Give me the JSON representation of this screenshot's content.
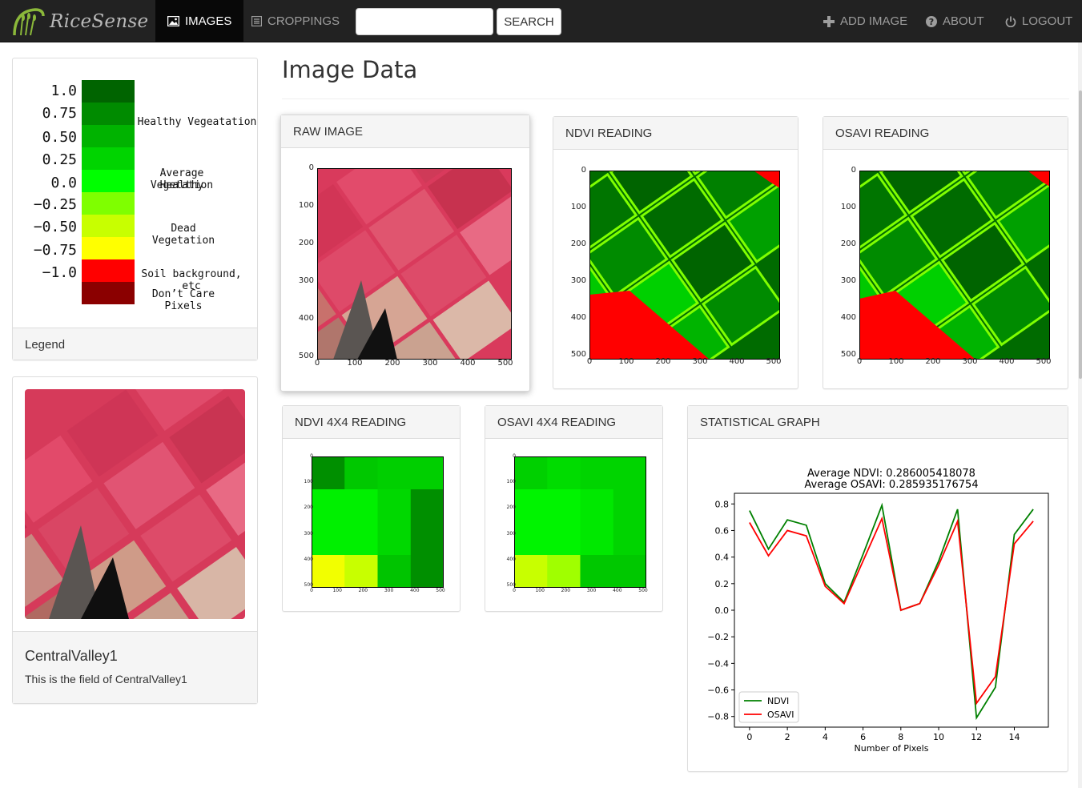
{
  "brand": {
    "name": "RiceSense"
  },
  "nav": {
    "images": "IMAGES",
    "croppings": "CROPPINGS",
    "search_value": "",
    "search_button": "SEARCH",
    "add_image": "ADD IMAGE",
    "about": "ABOUT",
    "logout": "LOGOUT"
  },
  "legend": {
    "values": [
      "1.0",
      "0.75",
      "0.50",
      "0.25",
      "0.0",
      "−0.25",
      "−0.50",
      "−0.75",
      "−1.0"
    ],
    "colors": [
      "#006400",
      "#008b00",
      "#00b300",
      "#00d400",
      "#00ff00",
      "#7fff00",
      "#c8ff00",
      "#ffff00",
      "#ff0000",
      "#8b0000"
    ],
    "desc_healthy": "Healthy Vegeatation",
    "desc_average_1": "Average Healthy",
    "desc_average_2": "Vegetation",
    "desc_dead": "Dead Vegetation",
    "desc_soil": "Soil background, etc",
    "desc_dontcare": "Don’t Care Pixels",
    "footer": "Legend"
  },
  "field_card": {
    "name": "CentralValley1",
    "description": "This is the field of CentralValley1"
  },
  "page_title": "Image Data",
  "panels": {
    "raw": "RAW IMAGE",
    "ndvi": "NDVI READING",
    "osavi": "OSAVI READING",
    "ndvi4": "NDVI 4X4 READING",
    "osavi4": "OSAVI 4X4 READING",
    "stat": "STATISTICAL GRAPH"
  },
  "image_axes": {
    "x_ticks": [
      "0",
      "100",
      "200",
      "300",
      "400",
      "500"
    ],
    "y_ticks": [
      "0",
      "100",
      "200",
      "300",
      "400",
      "500"
    ]
  },
  "grid4": {
    "ndvi": [
      [
        "#008f00",
        "#00c800",
        "#00cf00",
        "#00cf00"
      ],
      [
        "#00f000",
        "#00f000",
        "#00d800",
        "#008f00"
      ],
      [
        "#00f000",
        "#00f000",
        "#00d800",
        "#008f00"
      ],
      [
        "#f2ff00",
        "#c8ff00",
        "#00c400",
        "#008f00"
      ]
    ],
    "osavi": [
      [
        "#00d000",
        "#00dc00",
        "#00d400",
        "#00d400"
      ],
      [
        "#00f400",
        "#00f400",
        "#00e800",
        "#00d400"
      ],
      [
        "#00f400",
        "#00f400",
        "#00e800",
        "#00d400"
      ],
      [
        "#c8ff00",
        "#a0ff00",
        "#00c800",
        "#00c800"
      ]
    ]
  },
  "chart_data": {
    "type": "line",
    "title": "Average NDVI: 0.286005418078",
    "subtitle": "Average OSAVI: 0.285935176754",
    "xlabel": "Number of Pixels",
    "ylabel": "",
    "x": [
      0,
      1,
      2,
      3,
      4,
      5,
      6,
      7,
      8,
      9,
      10,
      11,
      12,
      13,
      14,
      15
    ],
    "xlim": [
      -0.8,
      15.8
    ],
    "ylim": [
      -0.88,
      0.88
    ],
    "x_ticks": [
      0,
      2,
      4,
      6,
      8,
      10,
      12,
      14
    ],
    "y_ticks": [
      0.8,
      0.6,
      0.4,
      0.2,
      0.0,
      -0.2,
      -0.4,
      -0.6,
      -0.8
    ],
    "legend_position": "bottom-left",
    "series": [
      {
        "name": "NDVI",
        "color": "#008000",
        "values": [
          0.75,
          0.46,
          0.68,
          0.64,
          0.2,
          0.06,
          0.42,
          0.79,
          0.0,
          0.05,
          0.37,
          0.76,
          -0.81,
          -0.58,
          0.57,
          0.76
        ]
      },
      {
        "name": "OSAVI",
        "color": "#ff0000",
        "values": [
          0.66,
          0.41,
          0.6,
          0.56,
          0.18,
          0.05,
          0.37,
          0.69,
          0.0,
          0.05,
          0.34,
          0.67,
          -0.7,
          -0.5,
          0.5,
          0.67
        ]
      }
    ]
  }
}
